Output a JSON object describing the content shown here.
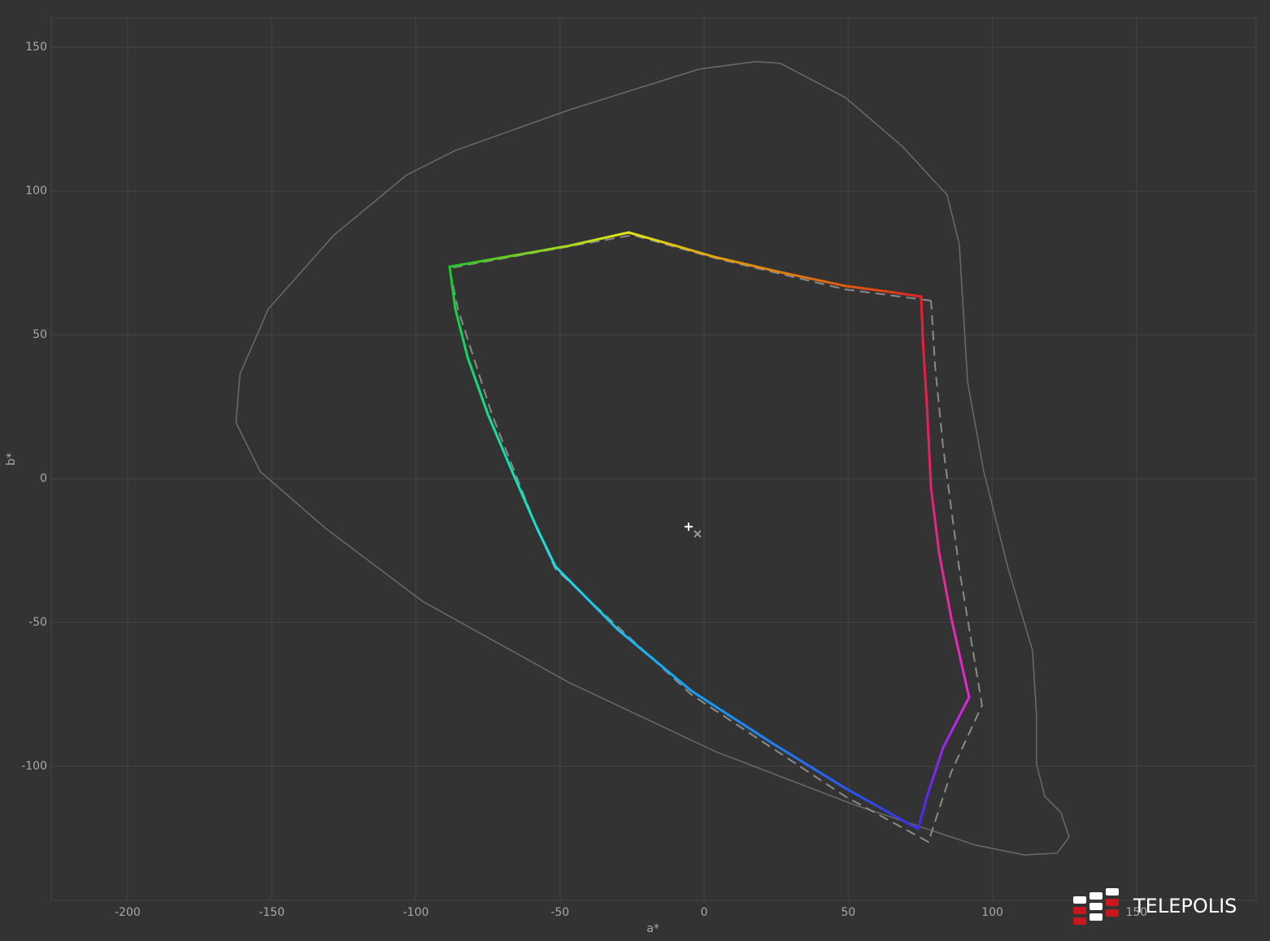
{
  "chart_data": {
    "type": "line",
    "xlabel": "a*",
    "ylabel": "b*",
    "xlim": [
      -226.5,
      191.5
    ],
    "ylim": [
      -146.6,
      160.2
    ],
    "xticks": [
      -200,
      -150,
      -100,
      -50,
      0,
      50,
      100,
      150
    ],
    "yticks": [
      -100,
      -50,
      0,
      50,
      100,
      150
    ],
    "grid": true,
    "series": [
      {
        "color": "#6a6a6a",
        "style": "solid",
        "x": [
          18,
          -1.7,
          -46.8,
          -86.3,
          -103.2,
          -128.6,
          -151.2,
          -161,
          -162.4,
          -154,
          -131.4,
          -97.6,
          -46.8,
          4,
          51.9,
          94.2,
          111.1,
          122.4,
          126.6,
          123.8,
          118.2,
          115.3,
          115.3,
          113.9,
          105.5,
          97,
          91.4,
          88.5,
          84.3,
          68.8,
          49,
          26.5,
          18
        ],
        "y": [
          145,
          142.4,
          128.2,
          114.1,
          105.6,
          84.5,
          59,
          36.4,
          19.5,
          2.5,
          -17.2,
          -42.7,
          -70.9,
          -94.9,
          -113.3,
          -127.4,
          -130.8,
          -130.2,
          -124.6,
          -116.1,
          -110.5,
          -99.2,
          -82.2,
          -59.6,
          -31.4,
          2.5,
          33.6,
          81.6,
          98.6,
          115.5,
          132.5,
          144.4,
          145
        ]
      },
      {
        "color": "#8a8a8a",
        "style": "dashed",
        "x": [
          78.7,
          49,
          4,
          -24.8,
          -88.3,
          -85.4,
          -73.6,
          -58,
          -51.6,
          -4.5,
          49,
          77.8,
          85.7,
          96.4,
          88.5,
          82.9,
          80.1,
          78.7
        ],
        "y": [
          61.9,
          65.8,
          76.6,
          84.7,
          73.2,
          59,
          22.3,
          -17.2,
          -31.4,
          -75,
          -110.5,
          -126.3,
          -102,
          -78.8,
          -31.4,
          11,
          39.3,
          61.9
        ]
      },
      {
        "style": "gradient",
        "x": [
          75.3,
          66,
          49,
          26.5,
          4,
          -10,
          -26.2,
          -46.8,
          -69.4,
          -88.3,
          -86.3,
          -82,
          -75,
          -66.6,
          -58,
          -51.6,
          -29.9,
          -4.5,
          23.7,
          49,
          74.2,
          77.3,
          82.9,
          91.9,
          85.7,
          81.5,
          78.7,
          77.3,
          75.9,
          75.3
        ],
        "y": [
          63.3,
          64.7,
          67,
          71.8,
          77,
          81,
          85.6,
          81,
          77,
          73.7,
          59,
          42,
          22.3,
          2.5,
          -17.2,
          -30.5,
          -52.5,
          -73.7,
          -92,
          -107.6,
          -121.8,
          -110.5,
          -93.5,
          -76,
          -48.3,
          -25.7,
          -3.1,
          25.1,
          47.7,
          63.3
        ],
        "colors": [
          "#e8202a",
          "#e03a18",
          "#e05a10",
          "#e08010",
          "#e0a010",
          "#e0c010",
          "#e8e818",
          "#a8d820",
          "#60cc20",
          "#20c828",
          "#18d040",
          "#10d868",
          "#10e090",
          "#10e0b0",
          "#18e0d0",
          "#20d8e8",
          "#18c0f0",
          "#10a0f8",
          "#2080f8",
          "#2858f0",
          "#3830e8",
          "#6028f0",
          "#9828f0",
          "#e028d8",
          "#e828b0",
          "#e82890",
          "#e82070",
          "#e82050",
          "#e82038",
          "#e8202a"
        ]
      }
    ],
    "points": [
      {
        "marker": "plus",
        "x": -5.4,
        "y": -16.7,
        "color": "#ffffff"
      },
      {
        "marker": "cross",
        "x": -2.3,
        "y": -19.2,
        "color": "#999999"
      }
    ],
    "watermark": "TELEPOLIS"
  }
}
